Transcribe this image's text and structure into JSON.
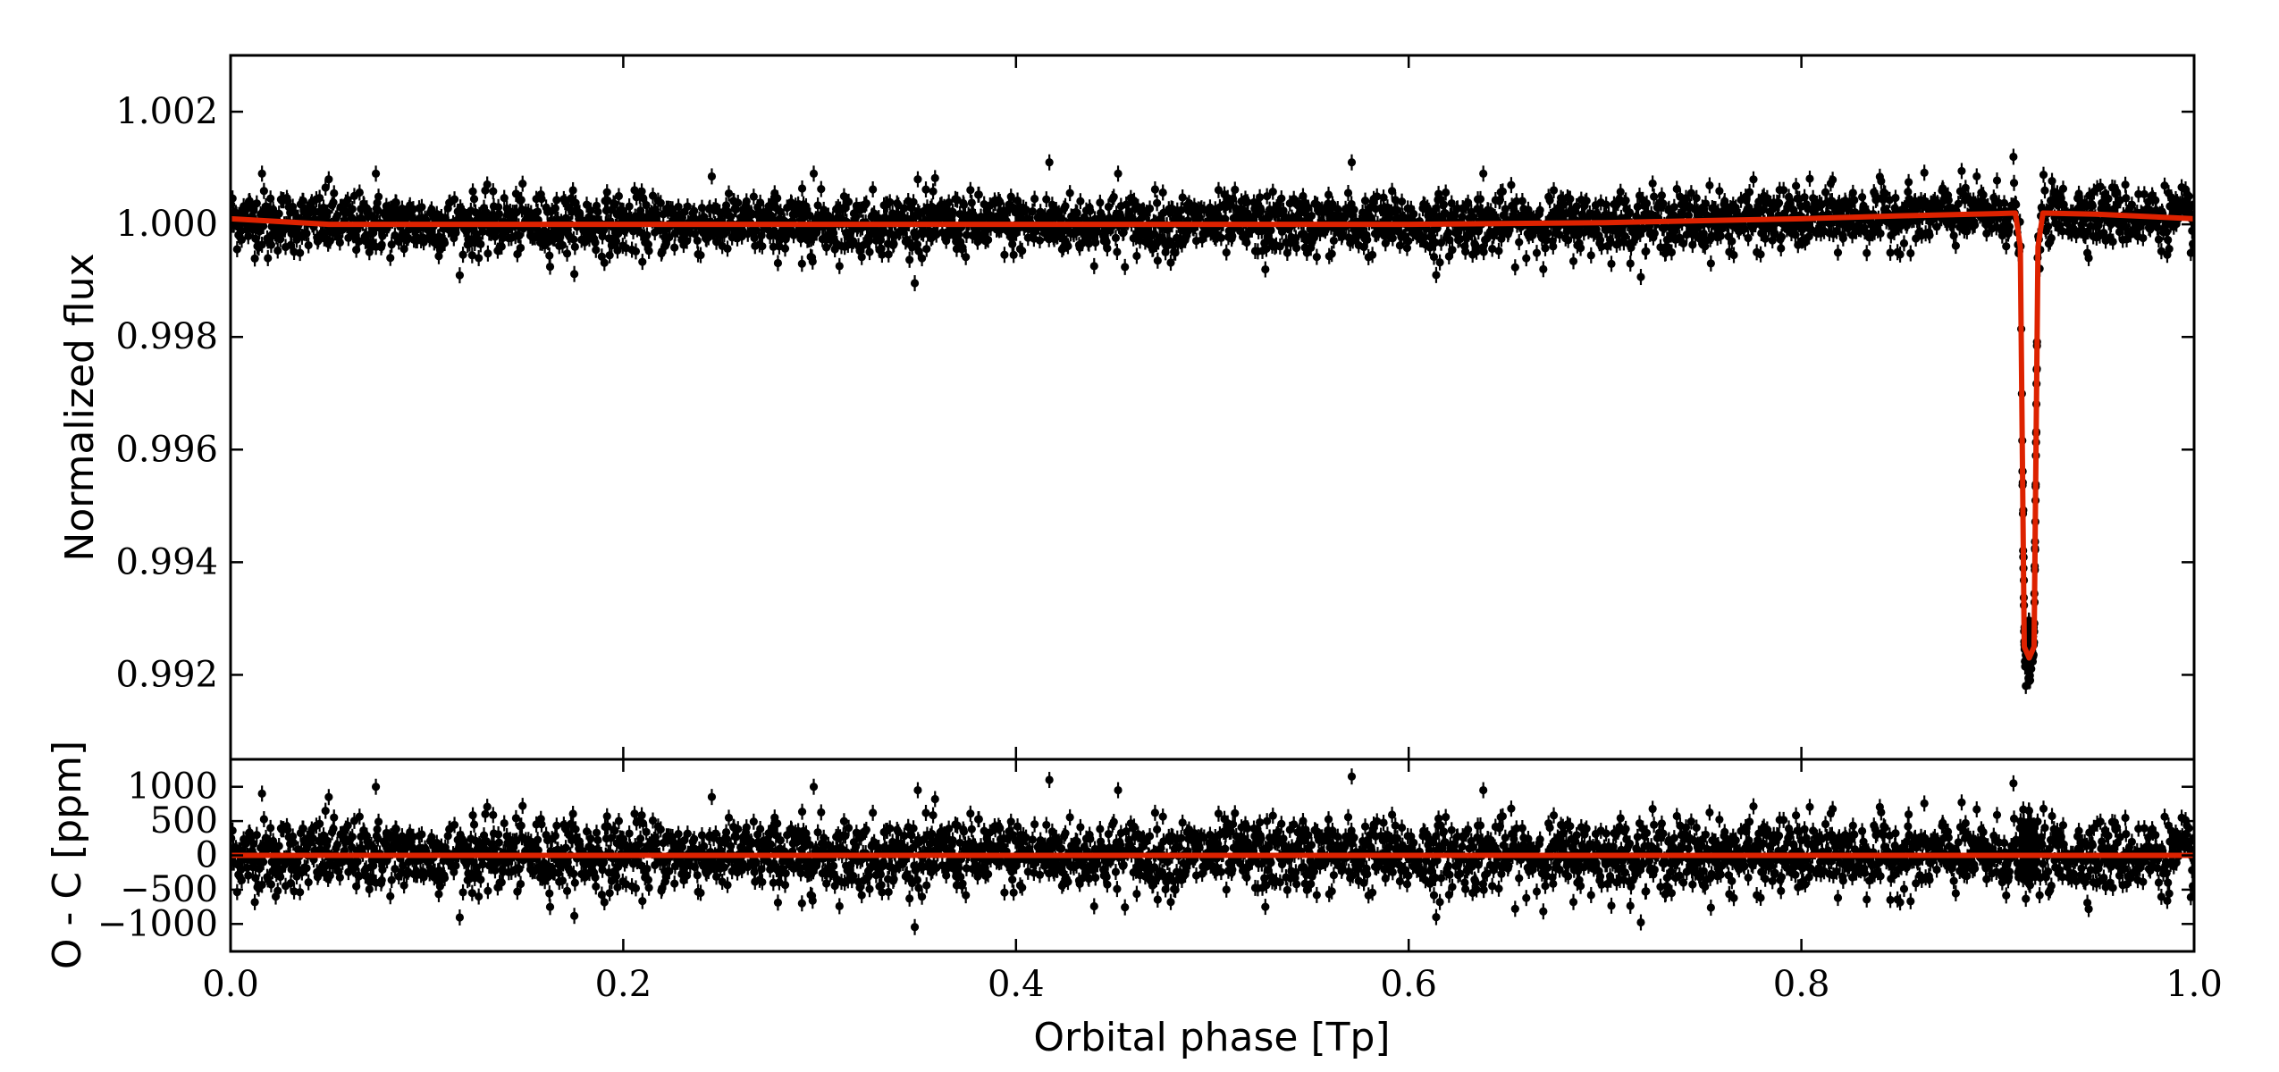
{
  "chart_data": [
    {
      "type": "scatter",
      "panel": "top",
      "ylabel": "Normalized flux",
      "xlim": [
        0.0,
        1.0
      ],
      "ylim": [
        0.9905,
        1.003
      ],
      "yticks": [
        0.992,
        0.994,
        0.996,
        0.998,
        1.0,
        1.002
      ],
      "ytick_labels": [
        "0.992",
        "0.994",
        "0.996",
        "0.998",
        "1.000",
        "1.002"
      ],
      "series": [
        {
          "kind": "data",
          "color": "#000000",
          "baseline": 1.0,
          "scatter_ppm": 260,
          "n_points": 3000,
          "outliers": [
            {
              "x": 0.016,
              "y": 1.0009
            },
            {
              "x": 0.05,
              "y": 1.0008
            },
            {
              "x": 0.074,
              "y": 1.0009
            },
            {
              "x": 0.291,
              "y": 0.9993
            },
            {
              "x": 0.297,
              "y": 1.0009
            },
            {
              "x": 0.35,
              "y": 1.0008
            },
            {
              "x": 0.417,
              "y": 1.0011
            },
            {
              "x": 0.452,
              "y": 1.0009
            },
            {
              "x": 0.527,
              "y": 0.9992
            },
            {
              "x": 0.571,
              "y": 1.0011
            },
            {
              "x": 0.614,
              "y": 0.9991
            },
            {
              "x": 0.638,
              "y": 1.0009
            },
            {
              "x": 0.908,
              "y": 1.0012
            },
            {
              "x": 0.019,
              "y": 0.9994
            }
          ]
        },
        {
          "kind": "model",
          "color": "#dd2200",
          "x": [
            0.0,
            0.05,
            0.1,
            0.2,
            0.3,
            0.4,
            0.5,
            0.6,
            0.7,
            0.8,
            0.85,
            0.9,
            0.909,
            0.9115,
            0.9135,
            0.916,
            0.9185,
            0.9205,
            0.923,
            0.95,
            1.0
          ],
          "y": [
            1.0001,
            1.0,
            1.0,
            1.0,
            1.0,
            1.0,
            1.0,
            1.0,
            1.00003,
            1.0001,
            1.00015,
            1.00019,
            1.0002,
            0.9996,
            0.9925,
            0.9923,
            0.9925,
            0.9996,
            1.0002,
            1.00018,
            1.0001
          ]
        }
      ]
    },
    {
      "type": "scatter",
      "panel": "bottom",
      "ylabel": "O - C [ppm]",
      "xlabel": "Orbital phase [Tp]",
      "xlim": [
        0.0,
        1.0
      ],
      "ylim": [
        -1400,
        1400
      ],
      "yticks": [
        -1000,
        -500,
        0,
        500,
        1000
      ],
      "ytick_labels": [
        "−1000",
        "−500",
        "0",
        "500",
        "1000"
      ],
      "xticks": [
        0.0,
        0.2,
        0.4,
        0.6,
        0.8,
        1.0
      ],
      "xtick_labels": [
        "0.0",
        "0.2",
        "0.4",
        "0.6",
        "0.8",
        "1.0"
      ],
      "series": [
        {
          "kind": "residuals",
          "color": "#000000",
          "scatter_ppm": 260,
          "n_points": 3000,
          "outliers": [
            {
              "x": 0.016,
              "y": 900
            },
            {
              "x": 0.05,
              "y": 850
            },
            {
              "x": 0.074,
              "y": 1000
            },
            {
              "x": 0.291,
              "y": -700
            },
            {
              "x": 0.297,
              "y": 1000
            },
            {
              "x": 0.35,
              "y": 950
            },
            {
              "x": 0.417,
              "y": 1100
            },
            {
              "x": 0.452,
              "y": 950
            },
            {
              "x": 0.527,
              "y": -750
            },
            {
              "x": 0.571,
              "y": 1150
            },
            {
              "x": 0.614,
              "y": -900
            },
            {
              "x": 0.638,
              "y": 950
            },
            {
              "x": 0.908,
              "y": 1050
            },
            {
              "x": 0.023,
              "y": -600
            }
          ]
        },
        {
          "kind": "zero-line",
          "color": "#dd2200",
          "x": [
            0.0,
            1.0
          ],
          "y": [
            0,
            0
          ]
        }
      ]
    }
  ]
}
